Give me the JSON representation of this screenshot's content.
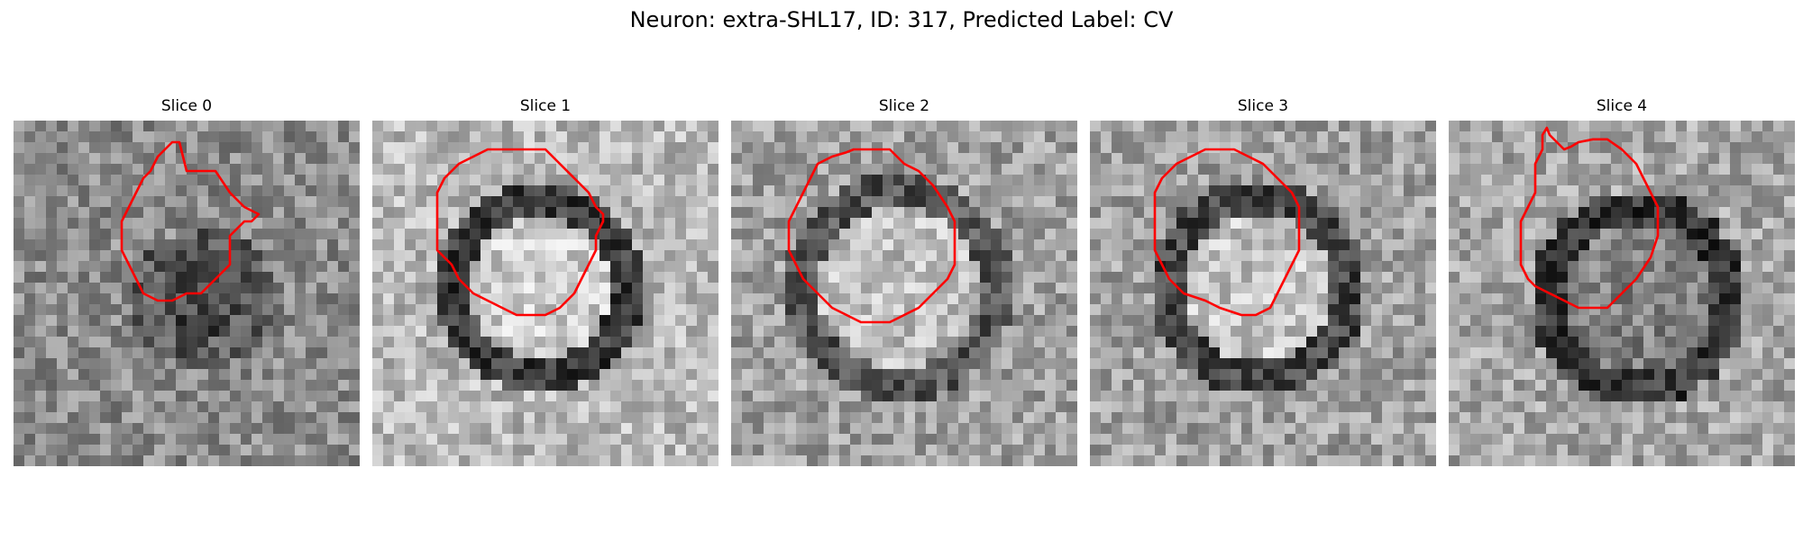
{
  "figure": {
    "title": "Neuron: extra-SHL17, ID: 317, Predicted Label: CV"
  },
  "panels": [
    {
      "title": "Slice 0",
      "contour": [
        [
          10,
          0.5
        ],
        [
          10.5,
          0.5
        ],
        [
          11,
          2.5
        ],
        [
          13,
          2.5
        ],
        [
          14,
          4
        ],
        [
          15,
          5
        ],
        [
          16,
          5.5
        ],
        [
          15.5,
          6
        ],
        [
          15,
          6
        ],
        [
          14,
          7
        ],
        [
          14,
          9
        ],
        [
          13,
          10
        ],
        [
          12,
          11
        ],
        [
          11,
          11
        ],
        [
          10,
          11.5
        ],
        [
          9,
          11.5
        ],
        [
          8,
          11
        ],
        [
          7.5,
          10
        ],
        [
          7,
          9
        ],
        [
          6.5,
          8
        ],
        [
          6.5,
          6
        ],
        [
          7,
          5
        ],
        [
          7.5,
          4
        ],
        [
          8,
          3
        ],
        [
          8.5,
          2.5
        ],
        [
          9,
          1.5
        ],
        [
          9.5,
          1
        ]
      ]
    },
    {
      "title": "Slice 1",
      "contour": [
        [
          8.5,
          1
        ],
        [
          11,
          1
        ],
        [
          12,
          2
        ],
        [
          13,
          3
        ],
        [
          13.5,
          3.5
        ],
        [
          14,
          4
        ],
        [
          14.5,
          5
        ],
        [
          15,
          5.5
        ],
        [
          15,
          6
        ],
        [
          14.5,
          7
        ],
        [
          14.5,
          8
        ],
        [
          14,
          9
        ],
        [
          13.5,
          10
        ],
        [
          13,
          11
        ],
        [
          12,
          12
        ],
        [
          11,
          12.5
        ],
        [
          9,
          12.5
        ],
        [
          8,
          12
        ],
        [
          7,
          11.5
        ],
        [
          6,
          11
        ],
        [
          5,
          10
        ],
        [
          4.5,
          9
        ],
        [
          4,
          8.5
        ],
        [
          3.5,
          8
        ],
        [
          3.5,
          4
        ],
        [
          4,
          3
        ],
        [
          4.5,
          2.5
        ],
        [
          5,
          2
        ],
        [
          6,
          1.5
        ],
        [
          7,
          1
        ]
      ]
    },
    {
      "title": "Slice 2",
      "contour": [
        [
          7.5,
          1
        ],
        [
          10,
          1
        ],
        [
          10.5,
          1.5
        ],
        [
          11,
          2
        ],
        [
          12,
          2.5
        ],
        [
          13,
          3.5
        ],
        [
          14,
          5
        ],
        [
          14.5,
          6
        ],
        [
          14.5,
          9
        ],
        [
          14,
          10
        ],
        [
          13,
          11
        ],
        [
          12,
          12
        ],
        [
          11,
          12.5
        ],
        [
          10,
          13
        ],
        [
          8,
          13
        ],
        [
          7,
          12.5
        ],
        [
          6,
          12
        ],
        [
          5,
          11
        ],
        [
          4,
          10
        ],
        [
          3.5,
          9
        ],
        [
          3,
          8
        ],
        [
          3,
          6
        ],
        [
          3.5,
          5
        ],
        [
          4,
          4
        ],
        [
          4.5,
          3
        ],
        [
          5,
          2
        ],
        [
          6,
          1.5
        ],
        [
          7,
          1.2
        ]
      ]
    },
    {
      "title": "Slice 3",
      "contour": [
        [
          7,
          1
        ],
        [
          9,
          1
        ],
        [
          10,
          1.5
        ],
        [
          11,
          2
        ],
        [
          12,
          3
        ],
        [
          13,
          4
        ],
        [
          13.5,
          5
        ],
        [
          13.5,
          8
        ],
        [
          13,
          9
        ],
        [
          12.5,
          10
        ],
        [
          12,
          11
        ],
        [
          11.5,
          12
        ],
        [
          10.5,
          12.5
        ],
        [
          9.5,
          12.5
        ],
        [
          8,
          12
        ],
        [
          7,
          11.5
        ],
        [
          5.5,
          11
        ],
        [
          4.5,
          10
        ],
        [
          4,
          9
        ],
        [
          3.5,
          8
        ],
        [
          3.5,
          4
        ],
        [
          4,
          3
        ],
        [
          5,
          2
        ],
        [
          6,
          1.5
        ]
      ]
    },
    {
      "title": "Slice 4",
      "contour": [
        [
          5.5,
          0
        ],
        [
          5.8,
          -0.5
        ],
        [
          6,
          0
        ],
        [
          6.5,
          0.5
        ],
        [
          7,
          1
        ],
        [
          7.5,
          0.8
        ],
        [
          8,
          0.5
        ],
        [
          9,
          0.3
        ],
        [
          10,
          0.3
        ],
        [
          11,
          1
        ],
        [
          12,
          2
        ],
        [
          12.5,
          3
        ],
        [
          13,
          4
        ],
        [
          13.5,
          5
        ],
        [
          13.5,
          7
        ],
        [
          13,
          8.5
        ],
        [
          12,
          10
        ],
        [
          11,
          11
        ],
        [
          10,
          12
        ],
        [
          8,
          12
        ],
        [
          7,
          11.5
        ],
        [
          6,
          11
        ],
        [
          5,
          10.5
        ],
        [
          4.5,
          10
        ],
        [
          4,
          9
        ],
        [
          4,
          6
        ],
        [
          4.5,
          5
        ],
        [
          5,
          4
        ],
        [
          5,
          2
        ],
        [
          5.5,
          1
        ]
      ]
    }
  ],
  "colors": {
    "contour": "#ff0000"
  }
}
